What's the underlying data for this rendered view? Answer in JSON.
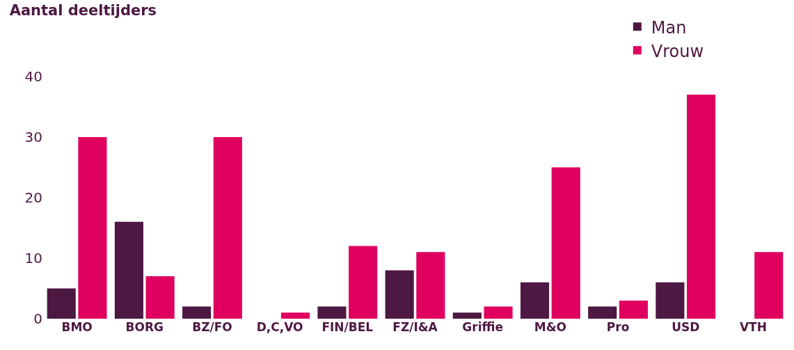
{
  "chart_data": {
    "type": "bar",
    "title": "Aantal deeltijders",
    "categories": [
      "BMO",
      "BORG",
      "BZ/FO",
      "D,C,VO",
      "FIN/BEL",
      "FZ/I&A",
      "Griffie",
      "M&O",
      "Pro",
      "USD",
      "VTH"
    ],
    "series": [
      {
        "name": "Man",
        "color": "#4d1842",
        "values": [
          5,
          16,
          2,
          0,
          2,
          8,
          1,
          6,
          2,
          6,
          0
        ]
      },
      {
        "name": "Vrouw",
        "color": "#e0005f",
        "values": [
          30,
          7,
          30,
          1,
          12,
          11,
          2,
          25,
          3,
          37,
          11
        ]
      }
    ],
    "ylim": [
      0,
      40
    ],
    "yticks": [
      0,
      10,
      20,
      30,
      40
    ],
    "grid": false,
    "legend": "top right"
  }
}
